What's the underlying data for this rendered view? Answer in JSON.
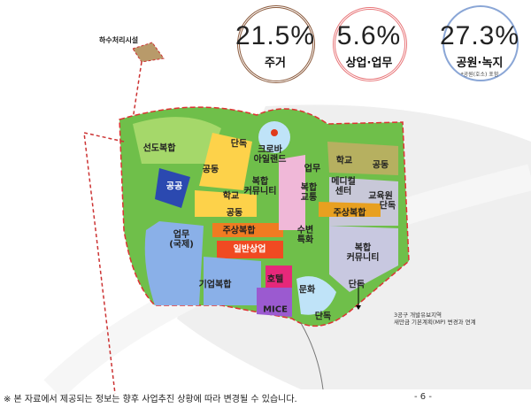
{
  "stats": [
    {
      "value": "21.5%",
      "category": "주거",
      "color": "#8b5a3c"
    },
    {
      "value": "5.6%",
      "category": "상업·업무",
      "color": "#e8777a"
    },
    {
      "value": "27.3%",
      "category": "공원·녹지",
      "note": "*공원(호소) 포함",
      "color": "#8aa6d6"
    }
  ],
  "map": {
    "sewage": "하수처리시설",
    "zones": [
      "선도복합",
      "단독",
      "크로바\n아일랜드",
      "학교",
      "공동",
      "공동",
      "복합\n커뮤니티",
      "업무",
      "메디컬\n센터",
      "학교",
      "공동",
      "복합\n교통",
      "교육원",
      "단독",
      "주상복합",
      "주상복합",
      "업무\n(국제)",
      "일반상업",
      "수변\n특화",
      "복합\n커뮤니티",
      "기업복합",
      "호텔",
      "문화",
      "MICE",
      "단독",
      "단독",
      "공공"
    ],
    "reserve_note": "3공구 개발유보지역\n새만금 기본계획(MP) 변경과 연계"
  },
  "footnote": "※ 본 자료에서 제공되는 정보는 향후 사업추진 상황에 따라 변경될 수 있습니다.",
  "page_number": "- 6 -"
}
